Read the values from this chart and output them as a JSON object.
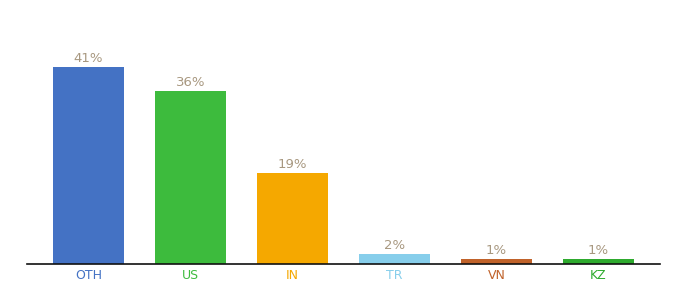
{
  "categories": [
    "OTH",
    "US",
    "IN",
    "TR",
    "VN",
    "KZ"
  ],
  "values": [
    41,
    36,
    19,
    2,
    1,
    1
  ],
  "bar_colors": [
    "#4472c4",
    "#3dbb3d",
    "#f5a800",
    "#87ceeb",
    "#c0622a",
    "#2eaa2e"
  ],
  "label_color": "#a89880",
  "label_fontsize": 9.5,
  "xlabel_fontsize": 9,
  "xtick_colors": [
    "#4472c4",
    "#3dbb3d",
    "#f5a800",
    "#87ceeb",
    "#c0622a",
    "#2eaa2e"
  ],
  "background_color": "#ffffff",
  "ylim": [
    0,
    50
  ],
  "bar_width": 0.7,
  "figsize": [
    6.8,
    3.0
  ],
  "dpi": 100
}
